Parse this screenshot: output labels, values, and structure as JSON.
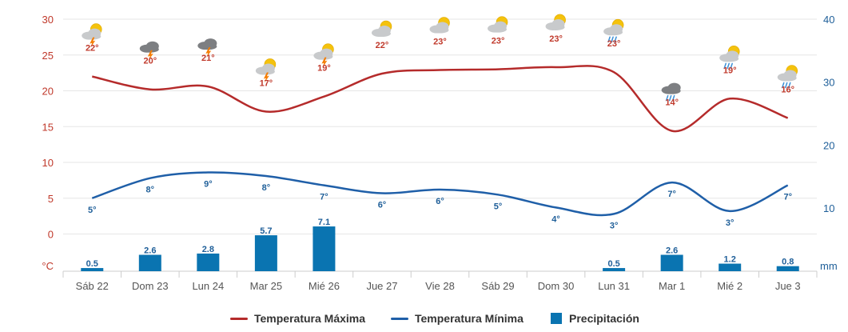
{
  "chart_data": {
    "type": "line",
    "categories": [
      "Sáb 22",
      "Dom 23",
      "Lun 24",
      "Mar 25",
      "Mié 26",
      "Jue 27",
      "Vie 28",
      "Sáb 29",
      "Dom 30",
      "Lun 31",
      "Mar 1",
      "Mié 2",
      "Jue 3"
    ],
    "series": [
      {
        "name": "Temperatura Máxima",
        "type": "line",
        "axis": "left",
        "color": "#b52b2b",
        "values": [
          22,
          20.2,
          20.6,
          17.1,
          19.2,
          22.4,
          22.9,
          23.0,
          23.3,
          22.6,
          14.4,
          18.9,
          16.2
        ],
        "labels": [
          "22°",
          "20°",
          "21°",
          "17°",
          "19°",
          "22°",
          "23°",
          "23°",
          "23°",
          "23°",
          "14°",
          "19°",
          "16°"
        ]
      },
      {
        "name": "Temperatura Mínima",
        "type": "line",
        "axis": "left",
        "color": "#1f5fa8",
        "values": [
          5,
          7.8,
          8.6,
          8.1,
          6.8,
          5.7,
          6.2,
          5.5,
          3.7,
          2.8,
          7.2,
          3.2,
          6.8
        ],
        "labels": [
          "5°",
          "8°",
          "9°",
          "8°",
          "7°",
          "6°",
          "6°",
          "5°",
          "4°",
          "3°",
          "7°",
          "3°",
          "7°"
        ]
      },
      {
        "name": "Precipitación",
        "type": "bar",
        "axis": "right",
        "color": "#0a74b1",
        "values": [
          0.5,
          2.6,
          2.8,
          5.7,
          7.1,
          0,
          0,
          0,
          0,
          0.5,
          2.6,
          1.2,
          0.8
        ],
        "labels": [
          "0.5",
          "2.6",
          "2.8",
          "5.7",
          "7.1",
          "",
          "",
          "",
          "",
          "0.5",
          "2.6",
          "1.2",
          "0.8"
        ]
      }
    ],
    "weather_icons": [
      "sun-cloud-storm-icon",
      "cloud-storm-icon",
      "cloud-storm-icon",
      "sun-cloud-storm-icon",
      "sun-cloud-storm-icon",
      "sun-cloud-icon",
      "sun-cloud-icon",
      "sun-cloud-icon",
      "sun-cloud-icon",
      "sun-cloud-rain-icon",
      "cloud-rain-icon",
      "sun-cloud-rain-icon",
      "sun-cloud-rain-icon"
    ],
    "left_axis": {
      "ticks": [
        30,
        25,
        20,
        15,
        10,
        5,
        0
      ],
      "unit": "°C",
      "ylim": [
        -4,
        30
      ]
    },
    "right_axis": {
      "ticks": [
        40,
        30,
        20,
        10
      ],
      "unit": "mm",
      "ylim": [
        0,
        40
      ]
    },
    "grid": true,
    "legend_position": "bottom",
    "title": "",
    "xlabel": "",
    "ylabel": ""
  }
}
